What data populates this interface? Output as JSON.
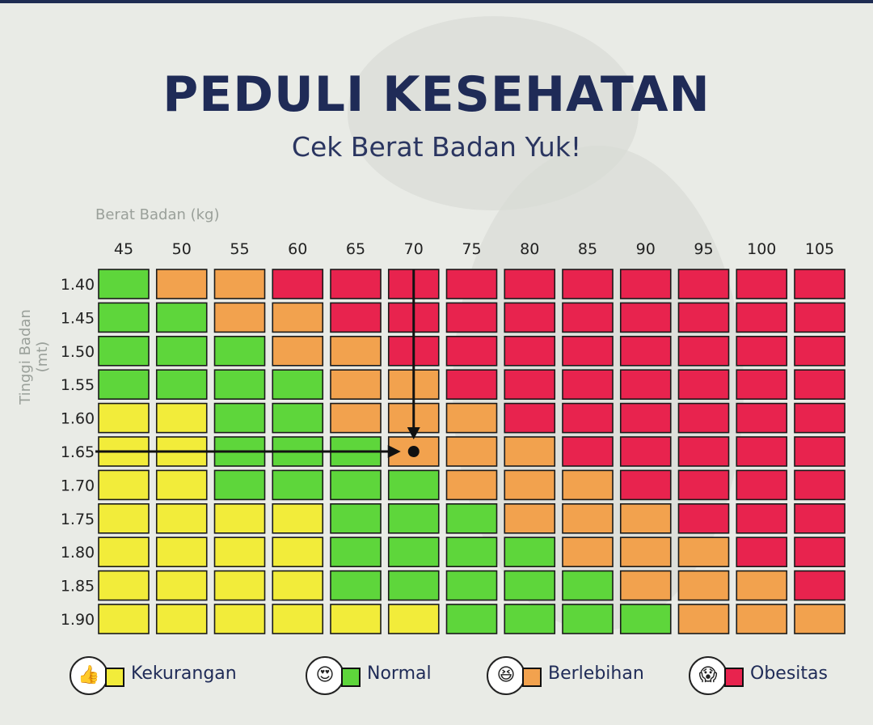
{
  "header": {
    "title": "PEDULI KESEHATAN",
    "subtitle": "Cek Berat Badan Yuk!"
  },
  "colors": {
    "Kekurangan": "#f2ec3a",
    "Normal": "#5ed63b",
    "Berlebihan": "#f2a24e",
    "Obesitas": "#e8234e",
    "title": "#1f2b57"
  },
  "chart_data": {
    "type": "heatmap",
    "title": "PEDULI KESEHATAN",
    "subtitle": "Cek Berat Badan Yuk!",
    "xlabel": "Berat Badan (kg)",
    "ylabel": "Tinggi Badan (mt)",
    "x": [
      "45",
      "50",
      "55",
      "60",
      "65",
      "70",
      "75",
      "80",
      "85",
      "90",
      "95",
      "100",
      "105"
    ],
    "y": [
      "1.40",
      "1.45",
      "1.50",
      "1.55",
      "1.60",
      "1.65",
      "1.70",
      "1.75",
      "1.80",
      "1.85",
      "1.90"
    ],
    "categories": [
      "Kekurangan",
      "Normal",
      "Berlebihan",
      "Obesitas"
    ],
    "cells": [
      [
        "Normal",
        "Berlebihan",
        "Berlebihan",
        "Obesitas",
        "Obesitas",
        "Obesitas",
        "Obesitas",
        "Obesitas",
        "Obesitas",
        "Obesitas",
        "Obesitas",
        "Obesitas",
        "Obesitas"
      ],
      [
        "Normal",
        "Normal",
        "Berlebihan",
        "Berlebihan",
        "Obesitas",
        "Obesitas",
        "Obesitas",
        "Obesitas",
        "Obesitas",
        "Obesitas",
        "Obesitas",
        "Obesitas",
        "Obesitas"
      ],
      [
        "Normal",
        "Normal",
        "Normal",
        "Berlebihan",
        "Berlebihan",
        "Obesitas",
        "Obesitas",
        "Obesitas",
        "Obesitas",
        "Obesitas",
        "Obesitas",
        "Obesitas",
        "Obesitas"
      ],
      [
        "Normal",
        "Normal",
        "Normal",
        "Normal",
        "Berlebihan",
        "Berlebihan",
        "Obesitas",
        "Obesitas",
        "Obesitas",
        "Obesitas",
        "Obesitas",
        "Obesitas",
        "Obesitas"
      ],
      [
        "Kekurangan",
        "Kekurangan",
        "Normal",
        "Normal",
        "Berlebihan",
        "Berlebihan",
        "Berlebihan",
        "Obesitas",
        "Obesitas",
        "Obesitas",
        "Obesitas",
        "Obesitas",
        "Obesitas"
      ],
      [
        "Kekurangan",
        "Kekurangan",
        "Normal",
        "Normal",
        "Normal",
        "Berlebihan",
        "Berlebihan",
        "Berlebihan",
        "Obesitas",
        "Obesitas",
        "Obesitas",
        "Obesitas",
        "Obesitas"
      ],
      [
        "Kekurangan",
        "Kekurangan",
        "Normal",
        "Normal",
        "Normal",
        "Normal",
        "Berlebihan",
        "Berlebihan",
        "Berlebihan",
        "Obesitas",
        "Obesitas",
        "Obesitas",
        "Obesitas"
      ],
      [
        "Kekurangan",
        "Kekurangan",
        "Kekurangan",
        "Kekurangan",
        "Normal",
        "Normal",
        "Normal",
        "Berlebihan",
        "Berlebihan",
        "Berlebihan",
        "Obesitas",
        "Obesitas",
        "Obesitas"
      ],
      [
        "Kekurangan",
        "Kekurangan",
        "Kekurangan",
        "Kekurangan",
        "Normal",
        "Normal",
        "Normal",
        "Normal",
        "Berlebihan",
        "Berlebihan",
        "Berlebihan",
        "Obesitas",
        "Obesitas"
      ],
      [
        "Kekurangan",
        "Kekurangan",
        "Kekurangan",
        "Kekurangan",
        "Normal",
        "Normal",
        "Normal",
        "Normal",
        "Normal",
        "Berlebihan",
        "Berlebihan",
        "Berlebihan",
        "Obesitas"
      ],
      [
        "Kekurangan",
        "Kekurangan",
        "Kekurangan",
        "Kekurangan",
        "Kekurangan",
        "Kekurangan",
        "Normal",
        "Normal",
        "Normal",
        "Normal",
        "Berlebihan",
        "Berlebihan",
        "Berlebihan"
      ]
    ],
    "highlight": {
      "x": "70",
      "y": "1.65"
    },
    "legend": "bottom"
  },
  "legend": {
    "items": [
      {
        "label": "Kekurangan",
        "face": "👍"
      },
      {
        "label": "Normal",
        "face": "😍"
      },
      {
        "label": "Berlebihan",
        "face": "😆"
      },
      {
        "label": "Obesitas",
        "face": "😱"
      }
    ]
  }
}
